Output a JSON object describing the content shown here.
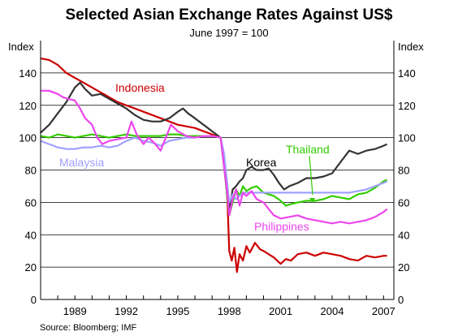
{
  "chart_data": {
    "type": "line",
    "title": "Selected Asian Exchange Rates Against US$",
    "subtitle": "June 1997 = 100",
    "ylabel_left": "Index",
    "ylabel_right": "Index",
    "source": "Source: Bloomberg; IMF",
    "ylim": [
      0,
      160
    ],
    "xlim": [
      1987.0,
      2007.6
    ],
    "yticks": [
      0,
      20,
      40,
      60,
      80,
      100,
      120,
      140
    ],
    "ytick_labels": [
      "0",
      "20",
      "40",
      "60",
      "80",
      "100",
      "120",
      "140"
    ],
    "xticks": [
      1989,
      1992,
      1995,
      1998,
      2001,
      2004,
      2007
    ],
    "xtick_labels": [
      "1989",
      "1992",
      "1995",
      "1998",
      "2001",
      "2004",
      "2007"
    ],
    "grid": true,
    "series": [
      {
        "name": "Indonesia",
        "color": "#cc0000",
        "x": [
          1987.0,
          1987.5,
          1988.0,
          1988.5,
          1989.0,
          1989.5,
          1990.0,
          1990.5,
          1991.0,
          1991.5,
          1992.0,
          1992.5,
          1993.0,
          1993.5,
          1994.0,
          1994.5,
          1995.0,
          1995.5,
          1996.0,
          1996.5,
          1997.0,
          1997.5,
          1997.7,
          1997.9,
          1998.0,
          1998.15,
          1998.3,
          1998.45,
          1998.6,
          1998.8,
          1999.0,
          1999.2,
          1999.5,
          1999.8,
          2000.0,
          2000.3,
          2000.6,
          2001.0,
          2001.3,
          2001.6,
          2002.0,
          2002.5,
          2003.0,
          2003.5,
          2004.0,
          2004.5,
          2005.0,
          2005.5,
          2006.0,
          2006.5,
          2007.0,
          2007.2
        ],
        "values": [
          149,
          148,
          145,
          140,
          137,
          134,
          131,
          128,
          125,
          122,
          120,
          118,
          116,
          114,
          112,
          110,
          108,
          107,
          106,
          104,
          102,
          100,
          88,
          60,
          30,
          24,
          32,
          17,
          28,
          24,
          33,
          29,
          35,
          31,
          30,
          28,
          26,
          22,
          25,
          24,
          28,
          29,
          27,
          29,
          28,
          27,
          25,
          24,
          27,
          26,
          27,
          27
        ]
      },
      {
        "name": "Korea",
        "color": "#333333",
        "x": [
          1987.0,
          1987.5,
          1988.0,
          1988.5,
          1989.0,
          1989.3,
          1989.6,
          1990.0,
          1990.5,
          1991.0,
          1991.5,
          1992.0,
          1992.5,
          1993.0,
          1993.5,
          1994.0,
          1994.5,
          1995.0,
          1995.3,
          1995.6,
          1996.0,
          1996.5,
          1997.0,
          1997.5,
          1997.7,
          1997.9,
          1998.0,
          1998.2,
          1998.4,
          1998.6,
          1998.8,
          1999.0,
          1999.3,
          1999.6,
          2000.0,
          2000.3,
          2000.6,
          2000.9,
          2001.2,
          2001.5,
          2002.0,
          2002.5,
          2003.0,
          2003.5,
          2004.0,
          2004.5,
          2005.0,
          2005.5,
          2006.0,
          2006.5,
          2007.0,
          2007.2
        ],
        "values": [
          103,
          108,
          115,
          122,
          131,
          134,
          130,
          126,
          127,
          124,
          121,
          118,
          114,
          111,
          110,
          110,
          112,
          116,
          118,
          115,
          112,
          108,
          104,
          100,
          85,
          65,
          55,
          68,
          70,
          73,
          75,
          80,
          82,
          80,
          80,
          81,
          77,
          72,
          68,
          70,
          72,
          75,
          75,
          76,
          78,
          85,
          92,
          90,
          92,
          93,
          95,
          96
        ]
      },
      {
        "name": "Thailand",
        "color": "#33cc00",
        "x": [
          1987.0,
          1987.5,
          1988.0,
          1988.5,
          1989.0,
          1989.5,
          1990.0,
          1990.5,
          1991.0,
          1991.5,
          1992.0,
          1992.5,
          1993.0,
          1993.5,
          1994.0,
          1994.5,
          1995.0,
          1995.5,
          1996.0,
          1996.5,
          1997.0,
          1997.5,
          1997.7,
          1997.9,
          1998.0,
          1998.2,
          1998.4,
          1998.6,
          1998.8,
          1999.0,
          1999.3,
          1999.6,
          2000.0,
          2000.3,
          2000.6,
          2001.0,
          2001.3,
          2001.6,
          2002.0,
          2002.5,
          2003.0,
          2003.5,
          2004.0,
          2004.5,
          2005.0,
          2005.5,
          2006.0,
          2006.5,
          2007.0,
          2007.2
        ],
        "values": [
          101,
          100,
          102,
          101,
          100,
          101,
          102,
          101,
          100,
          101,
          102,
          101,
          101,
          101,
          101,
          102,
          102,
          101,
          101,
          101,
          101,
          100,
          82,
          62,
          52,
          60,
          68,
          64,
          70,
          67,
          69,
          70,
          66,
          65,
          64,
          61,
          58,
          59,
          60,
          61,
          61,
          62,
          64,
          63,
          62,
          65,
          66,
          69,
          73,
          74
        ]
      },
      {
        "name": "Malaysia",
        "color": "#a0a0ff",
        "x": [
          1987.0,
          1987.5,
          1988.0,
          1988.5,
          1989.0,
          1989.5,
          1990.0,
          1990.5,
          1991.0,
          1991.5,
          1992.0,
          1992.5,
          1993.0,
          1993.5,
          1994.0,
          1994.5,
          1995.0,
          1995.5,
          1996.0,
          1996.5,
          1997.0,
          1997.5,
          1997.7,
          1997.9,
          1998.0,
          1998.2,
          1998.4,
          1998.6,
          1998.8,
          1999.0,
          1999.5,
          2000.0,
          2000.5,
          2001.0,
          2001.5,
          2002.0,
          2002.5,
          2003.0,
          2003.5,
          2004.0,
          2004.5,
          2005.0,
          2005.5,
          2006.0,
          2006.5,
          2007.0,
          2007.2
        ],
        "values": [
          98,
          96,
          94,
          93,
          93,
          94,
          94,
          95,
          94,
          95,
          98,
          100,
          98,
          97,
          95,
          98,
          99,
          100,
          100,
          101,
          101,
          100,
          90,
          70,
          60,
          65,
          62,
          64,
          66,
          66,
          66,
          66,
          66,
          66,
          66,
          66,
          66,
          66,
          66,
          66,
          66,
          66,
          67,
          68,
          70,
          72,
          73
        ]
      },
      {
        "name": "Philippines",
        "color": "#ee44ee",
        "x": [
          1987.0,
          1987.5,
          1988.0,
          1988.3,
          1988.6,
          1989.0,
          1989.3,
          1989.6,
          1990.0,
          1990.3,
          1990.6,
          1991.0,
          1991.5,
          1992.0,
          1992.3,
          1992.6,
          1993.0,
          1993.3,
          1993.6,
          1994.0,
          1994.3,
          1994.6,
          1995.0,
          1995.5,
          1996.0,
          1996.5,
          1997.0,
          1997.5,
          1997.7,
          1997.9,
          1998.0,
          1998.2,
          1998.4,
          1998.6,
          1998.8,
          1999.0,
          1999.3,
          1999.6,
          2000.0,
          2000.3,
          2000.6,
          2001.0,
          2001.5,
          2002.0,
          2002.5,
          2003.0,
          2003.5,
          2004.0,
          2004.5,
          2005.0,
          2005.5,
          2006.0,
          2006.5,
          2007.0,
          2007.2
        ],
        "values": [
          129,
          129,
          127,
          125,
          124,
          123,
          118,
          112,
          108,
          100,
          96,
          98,
          99,
          100,
          110,
          102,
          96,
          100,
          97,
          92,
          100,
          108,
          104,
          101,
          100,
          101,
          101,
          100,
          82,
          64,
          52,
          62,
          68,
          58,
          66,
          64,
          67,
          62,
          60,
          56,
          52,
          50,
          51,
          52,
          50,
          49,
          48,
          47,
          48,
          47,
          48,
          49,
          51,
          54,
          56
        ]
      }
    ],
    "labels": [
      {
        "text": "Indonesia",
        "color": "#cc0000"
      },
      {
        "text": "Korea",
        "color": "#000000"
      },
      {
        "text": "Thailand",
        "color": "#33cc00"
      },
      {
        "text": "Malaysia",
        "color": "#a0a0ff"
      },
      {
        "text": "Philippines",
        "color": "#ee44ee"
      }
    ]
  }
}
